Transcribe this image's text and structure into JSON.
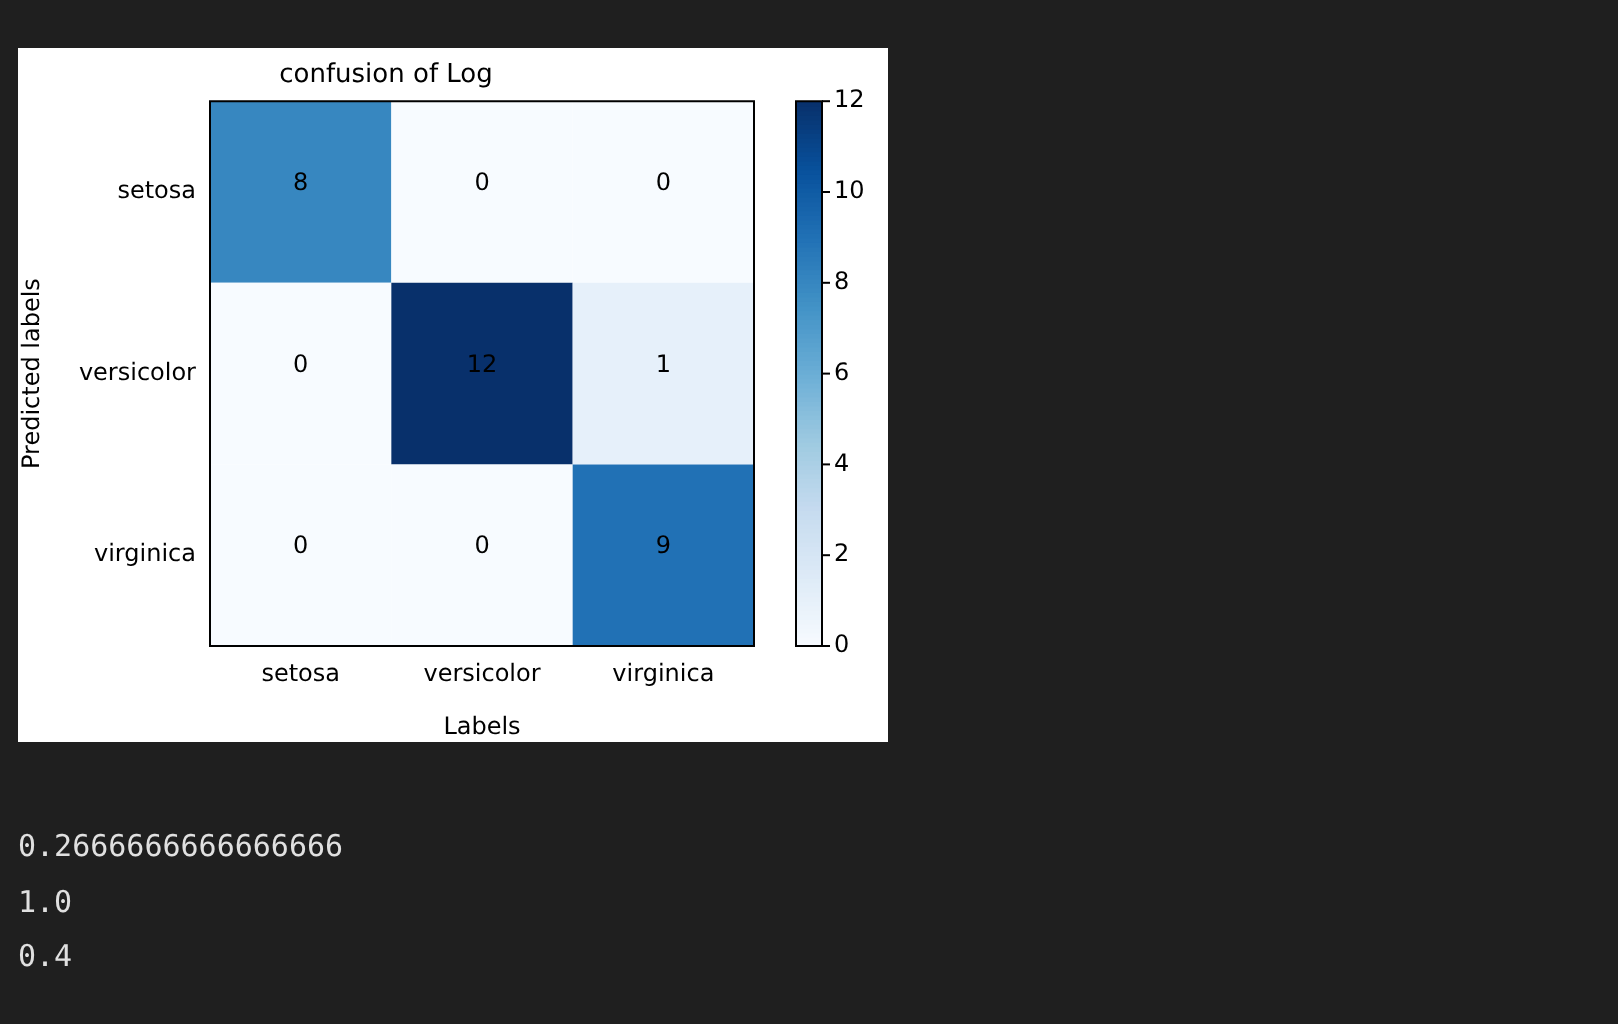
{
  "chart_data": {
    "type": "heatmap",
    "title": "confusion of Log",
    "xlabel": "Labels",
    "ylabel": "Predicted labels",
    "categories": [
      "setosa",
      "versicolor",
      "virginica"
    ],
    "y_categories": [
      "setosa",
      "versicolor",
      "virginica"
    ],
    "cells": [
      [
        8,
        0,
        0
      ],
      [
        0,
        12,
        1
      ],
      [
        0,
        0,
        9
      ]
    ],
    "clim": [
      0,
      12
    ],
    "cticks": [
      0,
      2,
      4,
      6,
      8,
      10,
      12
    ],
    "data_labels": true,
    "annotations": [
      "0.2666666666666666",
      "1.0",
      "0.4"
    ]
  }
}
